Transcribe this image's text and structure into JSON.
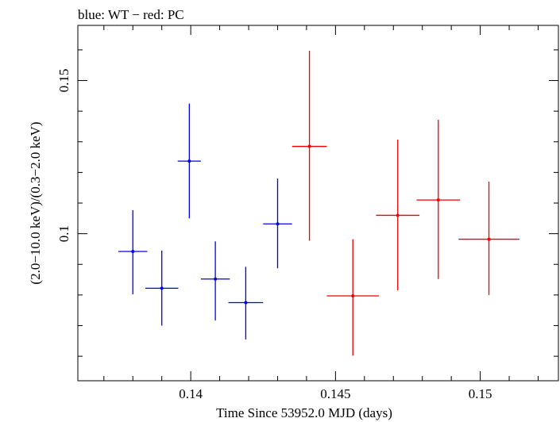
{
  "chart_data": {
    "type": "scatter",
    "title": "blue: WT − red: PC",
    "xlabel": "Time Since 53952.0 MJD (days)",
    "ylabel": "(2.0−10.0 keV)/(0.3−2.0 keV)",
    "xlim": [
      0.1361,
      0.1527
    ],
    "ylim": [
      0.052,
      0.168
    ],
    "xticks": [
      {
        "value": 0.14,
        "label": "0.14"
      },
      {
        "value": 0.145,
        "label": "0.145"
      },
      {
        "value": 0.15,
        "label": "0.15"
      }
    ],
    "yticks": [
      {
        "value": 0.1,
        "label": "0.1"
      },
      {
        "value": 0.15,
        "label": "0.15"
      }
    ],
    "grid": false,
    "series": [
      {
        "name": "WT",
        "color": "#0000ee",
        "points": [
          {
            "x": 0.138,
            "xerr": 0.0005,
            "y": 0.0942,
            "ylo": 0.0802,
            "yhi": 0.1077
          },
          {
            "x": 0.139,
            "xerr": 0.00057,
            "y": 0.0822,
            "ylo": 0.07,
            "yhi": 0.0945
          },
          {
            "x": 0.13995,
            "xerr": 0.0004,
            "y": 0.1237,
            "ylo": 0.105,
            "yhi": 0.1425
          },
          {
            "x": 0.14085,
            "xerr": 0.0005,
            "y": 0.0852,
            "ylo": 0.0717,
            "yhi": 0.0975
          },
          {
            "x": 0.1419,
            "xerr": 0.0006,
            "y": 0.0775,
            "ylo": 0.0655,
            "yhi": 0.0892
          },
          {
            "x": 0.143,
            "xerr": 0.0005,
            "y": 0.1032,
            "ylo": 0.0887,
            "yhi": 0.118
          }
        ]
      },
      {
        "name": "PC",
        "color": "#ee0000",
        "points": [
          {
            "x": 0.1441,
            "xerr": 0.0006,
            "y": 0.1285,
            "ylo": 0.0977,
            "yhi": 0.1597
          },
          {
            "x": 0.1456,
            "xerr": 0.0009,
            "y": 0.0797,
            "ylo": 0.0602,
            "yhi": 0.0982
          },
          {
            "x": 0.14715,
            "xerr": 0.00075,
            "y": 0.106,
            "ylo": 0.0815,
            "yhi": 0.1307
          },
          {
            "x": 0.14855,
            "xerr": 0.00075,
            "y": 0.111,
            "ylo": 0.0852,
            "yhi": 0.1372
          },
          {
            "x": 0.1503,
            "xerr": 0.00105,
            "y": 0.0982,
            "ylo": 0.08,
            "yhi": 0.117
          }
        ]
      }
    ]
  }
}
